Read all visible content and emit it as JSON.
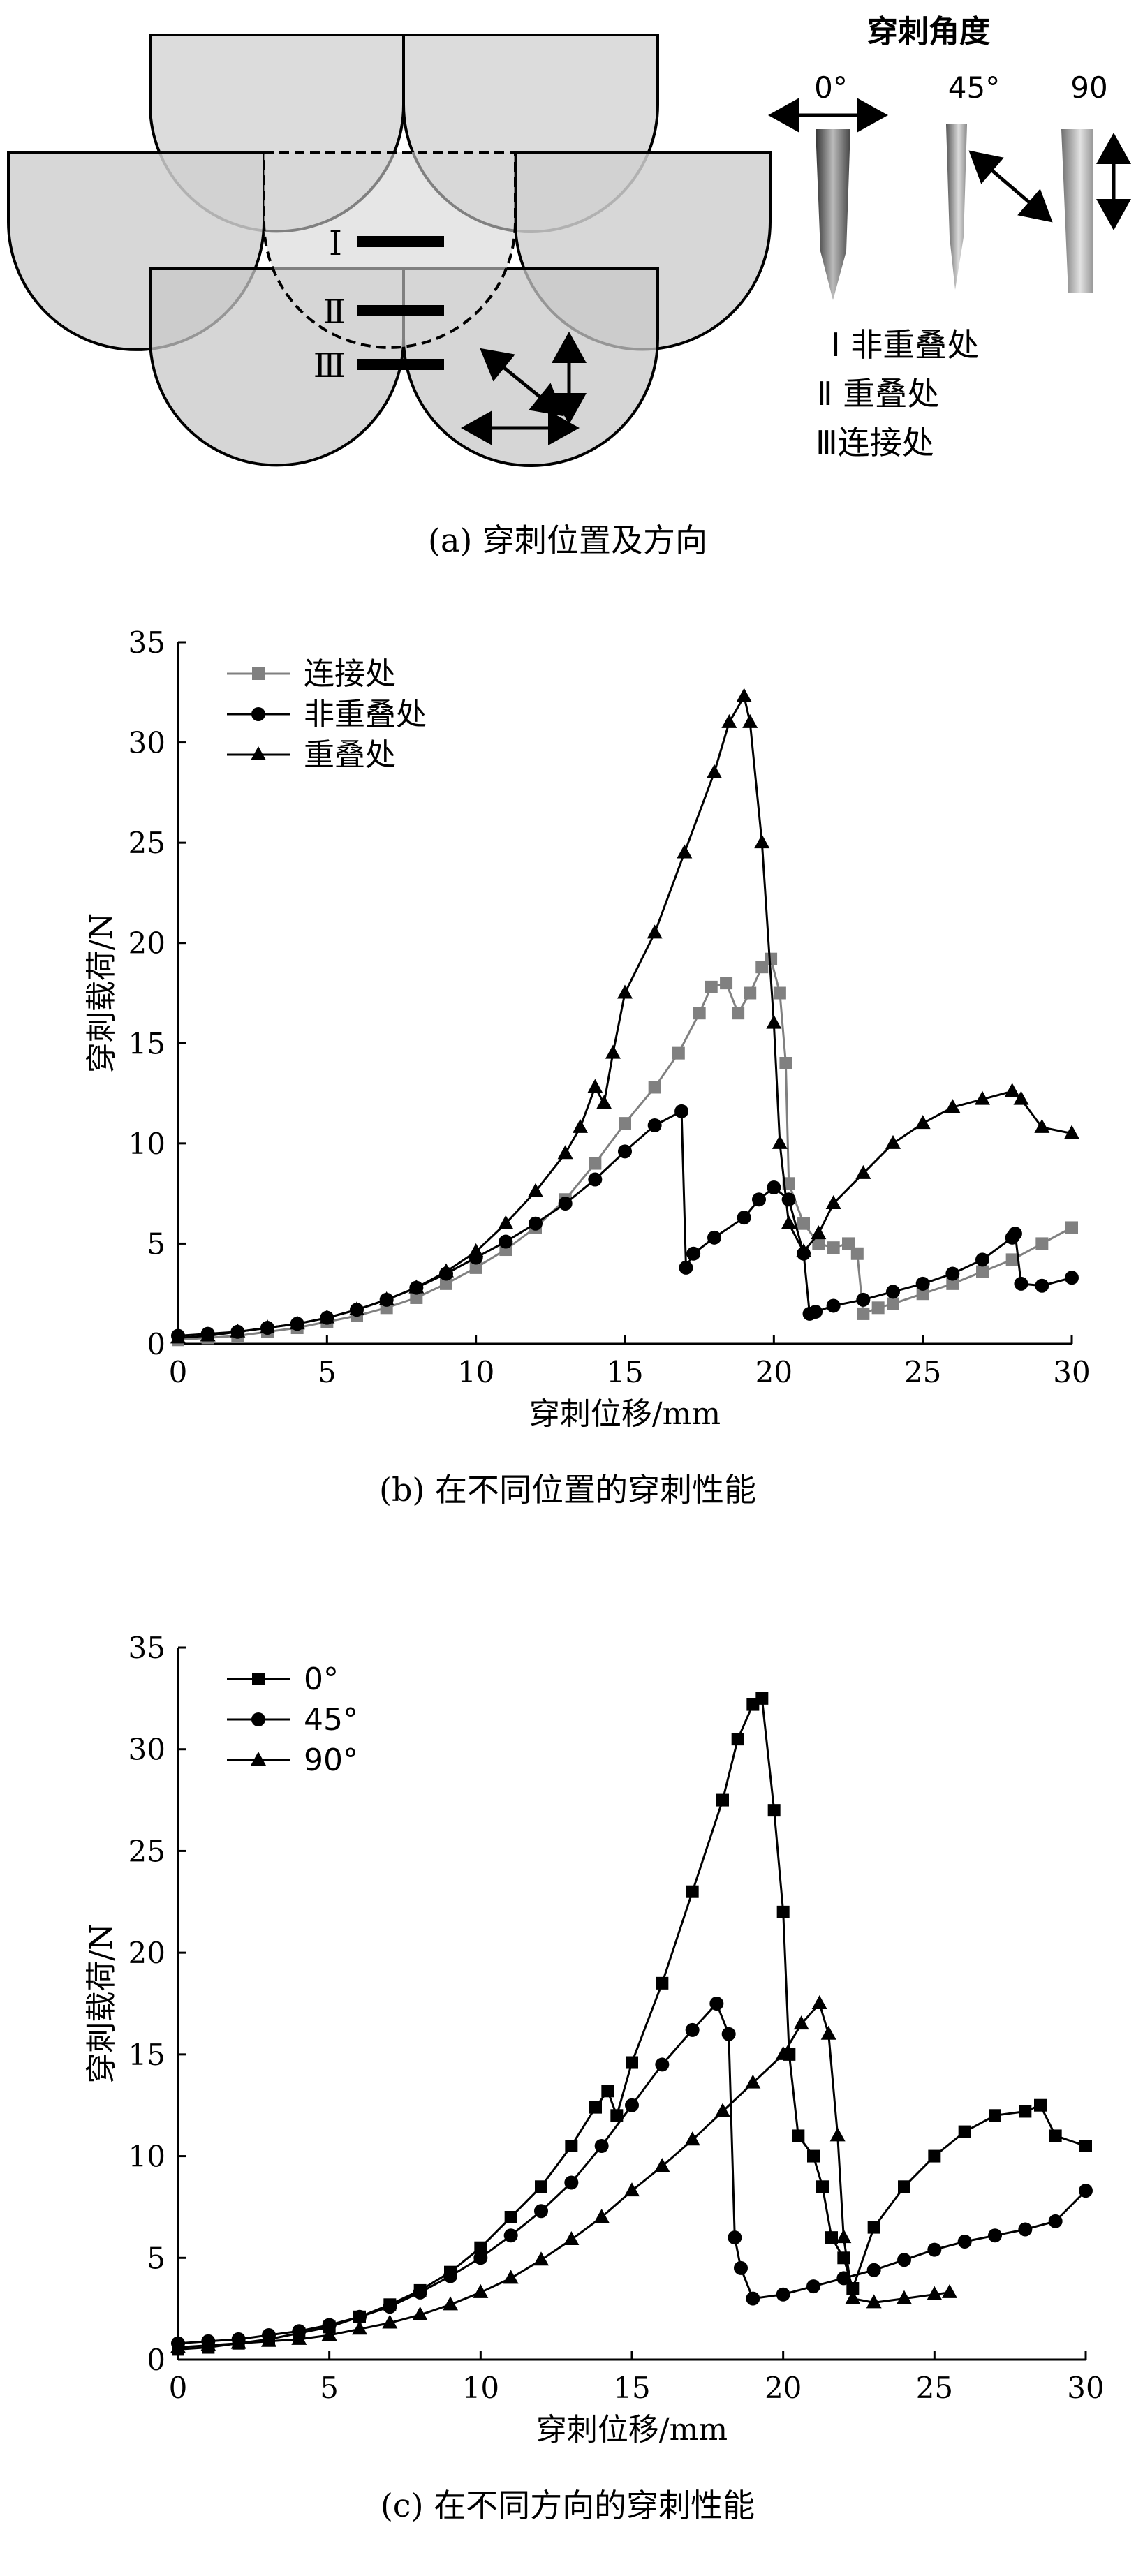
{
  "panel_a": {
    "angle_title": "穿刺角度",
    "angle_labels": [
      "0°",
      "45°",
      "90"
    ],
    "markers": [
      "Ⅰ",
      "Ⅱ",
      "Ⅲ"
    ],
    "legend": [
      "Ⅰ 非重叠处",
      "Ⅱ 重叠处",
      "Ⅲ连接处"
    ],
    "caption": "(a) 穿刺位置及方向"
  },
  "chart_data": [
    {
      "type": "line",
      "caption": "(b) 在不同位置的穿刺性能",
      "xlabel": "穿刺位移/mm",
      "ylabel": "穿刺载荷/N",
      "xlim": [
        0,
        30
      ],
      "ylim": [
        0,
        35
      ],
      "xticks": [
        "0",
        "5",
        "10",
        "15",
        "20",
        "25",
        "30"
      ],
      "yticks": [
        "0",
        "5",
        "10",
        "15",
        "20",
        "25",
        "30",
        "35"
      ],
      "legend_position": "top-left",
      "series": [
        {
          "name": "连接处",
          "marker": "square",
          "color": "#808080",
          "x": [
            0,
            1,
            2,
            3,
            4,
            5,
            6,
            7,
            8,
            9,
            10,
            11,
            12,
            13,
            14,
            15,
            16,
            16.8,
            17.5,
            17.9,
            18.4,
            18.8,
            19.2,
            19.6,
            19.9,
            20.2,
            20.4,
            20.5,
            21,
            21.5,
            22,
            22.5,
            22.8,
            23,
            23.5,
            24,
            25,
            26,
            27,
            28,
            29,
            30
          ],
          "y": [
            0.2,
            0.3,
            0.4,
            0.6,
            0.8,
            1.1,
            1.4,
            1.8,
            2.3,
            3,
            3.8,
            4.7,
            5.8,
            7.2,
            9,
            11,
            12.8,
            14.5,
            16.5,
            17.8,
            18,
            16.5,
            17.5,
            18.8,
            19.2,
            17.5,
            14,
            8,
            6,
            5,
            4.8,
            5,
            4.5,
            1.5,
            1.8,
            2,
            2.5,
            3,
            3.6,
            4.2,
            5,
            5.8
          ]
        },
        {
          "name": "非重叠处",
          "marker": "circle",
          "color": "#000000",
          "x": [
            0,
            1,
            2,
            3,
            4,
            5,
            6,
            7,
            8,
            9,
            10,
            11,
            12,
            13,
            14,
            15,
            16,
            16.9,
            17.05,
            17.3,
            18,
            19,
            19.5,
            20,
            20.5,
            21,
            21.2,
            21.4,
            22,
            23,
            24,
            25,
            26,
            27,
            28,
            28.1,
            28.3,
            29,
            30
          ],
          "y": [
            0.4,
            0.5,
            0.6,
            0.8,
            1,
            1.3,
            1.7,
            2.2,
            2.8,
            3.5,
            4.3,
            5.1,
            6,
            7,
            8.2,
            9.6,
            10.9,
            11.6,
            3.8,
            4.5,
            5.3,
            6.3,
            7.2,
            7.8,
            7.2,
            4.5,
            1.5,
            1.6,
            1.9,
            2.2,
            2.6,
            3,
            3.5,
            4.2,
            5.3,
            5.5,
            3,
            2.9,
            3.3
          ]
        },
        {
          "name": "重叠处",
          "marker": "triangle",
          "color": "#000000",
          "x": [
            0,
            1,
            2,
            3,
            4,
            5,
            6,
            7,
            8,
            9,
            10,
            11,
            12,
            13,
            13.5,
            14,
            14.3,
            14.6,
            15,
            16,
            17,
            18,
            18.5,
            19,
            19.2,
            19.6,
            20,
            20.2,
            20.5,
            21,
            21.5,
            22,
            23,
            24,
            25,
            26,
            27,
            28,
            28.3,
            29,
            30
          ],
          "y": [
            0.3,
            0.4,
            0.6,
            0.8,
            1,
            1.3,
            1.7,
            2.2,
            2.8,
            3.6,
            4.6,
            6,
            7.6,
            9.5,
            10.8,
            12.8,
            12,
            14.5,
            17.5,
            20.5,
            24.5,
            28.5,
            31,
            32.3,
            31,
            25,
            16,
            10,
            6,
            4.6,
            5.5,
            7,
            8.5,
            10,
            11,
            11.8,
            12.2,
            12.6,
            12.2,
            10.8,
            10.5
          ]
        }
      ]
    },
    {
      "type": "line",
      "caption": "(c) 在不同方向的穿刺性能",
      "xlabel": "穿刺位移/mm",
      "ylabel": "穿刺载荷/N",
      "xlim": [
        0,
        30
      ],
      "ylim": [
        0,
        35
      ],
      "xticks": [
        "0",
        "5",
        "10",
        "15",
        "20",
        "25",
        "30"
      ],
      "yticks": [
        "0",
        "5",
        "10",
        "15",
        "20",
        "25",
        "30",
        "35"
      ],
      "legend_position": "top-left",
      "series": [
        {
          "name": "0°",
          "marker": "square",
          "color": "#000000",
          "x": [
            0,
            1,
            2,
            3,
            4,
            5,
            6,
            7,
            8,
            9,
            10,
            11,
            12,
            13,
            13.8,
            14.2,
            14.5,
            15,
            16,
            17,
            18,
            18.5,
            19,
            19.3,
            19.7,
            20,
            20.2,
            20.5,
            21,
            21.3,
            21.6,
            22,
            22.3,
            23,
            24,
            25,
            26,
            27,
            28,
            28.5,
            29,
            30
          ],
          "y": [
            0.5,
            0.6,
            0.8,
            1,
            1.3,
            1.6,
            2.1,
            2.7,
            3.4,
            4.3,
            5.5,
            7,
            8.5,
            10.5,
            12.4,
            13.2,
            12,
            14.6,
            18.5,
            23,
            27.5,
            30.5,
            32.2,
            32.5,
            27,
            22,
            15,
            11,
            10,
            8.5,
            6,
            5,
            3.5,
            6.5,
            8.5,
            10,
            11.2,
            12,
            12.2,
            12.5,
            11,
            10.5
          ]
        },
        {
          "name": "45°",
          "marker": "circle",
          "color": "#000000",
          "x": [
            0,
            1,
            2,
            3,
            4,
            5,
            6,
            7,
            8,
            9,
            10,
            11,
            12,
            13,
            14,
            15,
            16,
            17,
            17.8,
            18.2,
            18.4,
            18.6,
            19,
            20,
            21,
            22,
            23,
            24,
            25,
            26,
            27,
            28,
            29,
            30
          ],
          "y": [
            0.8,
            0.9,
            1,
            1.2,
            1.4,
            1.7,
            2.1,
            2.6,
            3.3,
            4.1,
            5,
            6.1,
            7.3,
            8.7,
            10.5,
            12.5,
            14.5,
            16.2,
            17.5,
            16,
            6,
            4.5,
            3,
            3.2,
            3.6,
            4,
            4.4,
            4.9,
            5.4,
            5.8,
            6.1,
            6.4,
            6.8,
            8.3
          ]
        },
        {
          "name": "90°",
          "marker": "triangle",
          "color": "#000000",
          "x": [
            0,
            1,
            2,
            3,
            4,
            5,
            6,
            7,
            8,
            9,
            10,
            11,
            12,
            13,
            14,
            15,
            16,
            17,
            18,
            19,
            20,
            20.6,
            21.2,
            21.5,
            21.8,
            22,
            22.3,
            23,
            24,
            25,
            25.5
          ],
          "y": [
            0.6,
            0.7,
            0.8,
            0.9,
            1,
            1.2,
            1.5,
            1.8,
            2.2,
            2.7,
            3.3,
            4,
            4.9,
            5.9,
            7,
            8.3,
            9.5,
            10.8,
            12.2,
            13.6,
            15,
            16.5,
            17.5,
            16,
            11,
            6,
            3,
            2.8,
            3,
            3.2,
            3.3
          ]
        }
      ]
    }
  ]
}
